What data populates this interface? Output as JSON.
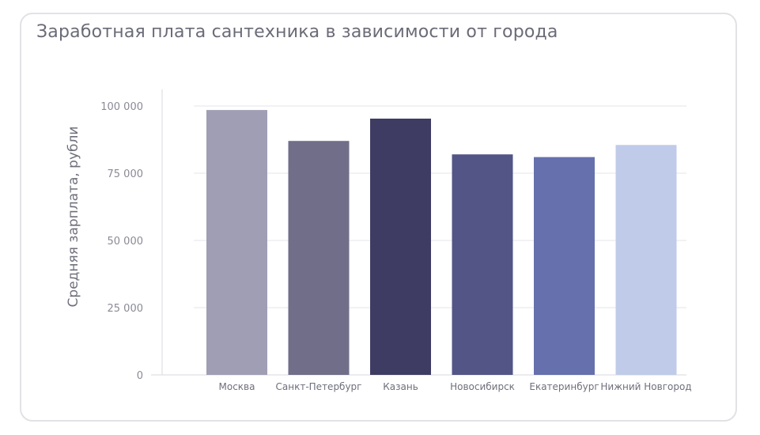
{
  "chart_data": {
    "type": "bar",
    "title": "Заработная плата сантехника в зависимости от города",
    "xlabel": "",
    "ylabel": "Средняя зарплата, рубли",
    "ylim": [
      0,
      100000
    ],
    "yticks": [
      0,
      25000,
      50000,
      75000,
      100000
    ],
    "ytick_labels": [
      "0",
      "25 000",
      "50 000",
      "75 000",
      "100 000"
    ],
    "grid": true,
    "legend": "none",
    "categories": [
      "Москва",
      "Санкт-Петербург",
      "Казань",
      "Новосибирск",
      "Екатеринбург",
      "Нижний Новгород"
    ],
    "values": [
      98500,
      87000,
      95300,
      82000,
      81000,
      85500
    ],
    "colors": [
      "#a09eb4",
      "#716e8a",
      "#3e3c63",
      "#525586",
      "#6670ad",
      "#bfcbe8"
    ]
  }
}
